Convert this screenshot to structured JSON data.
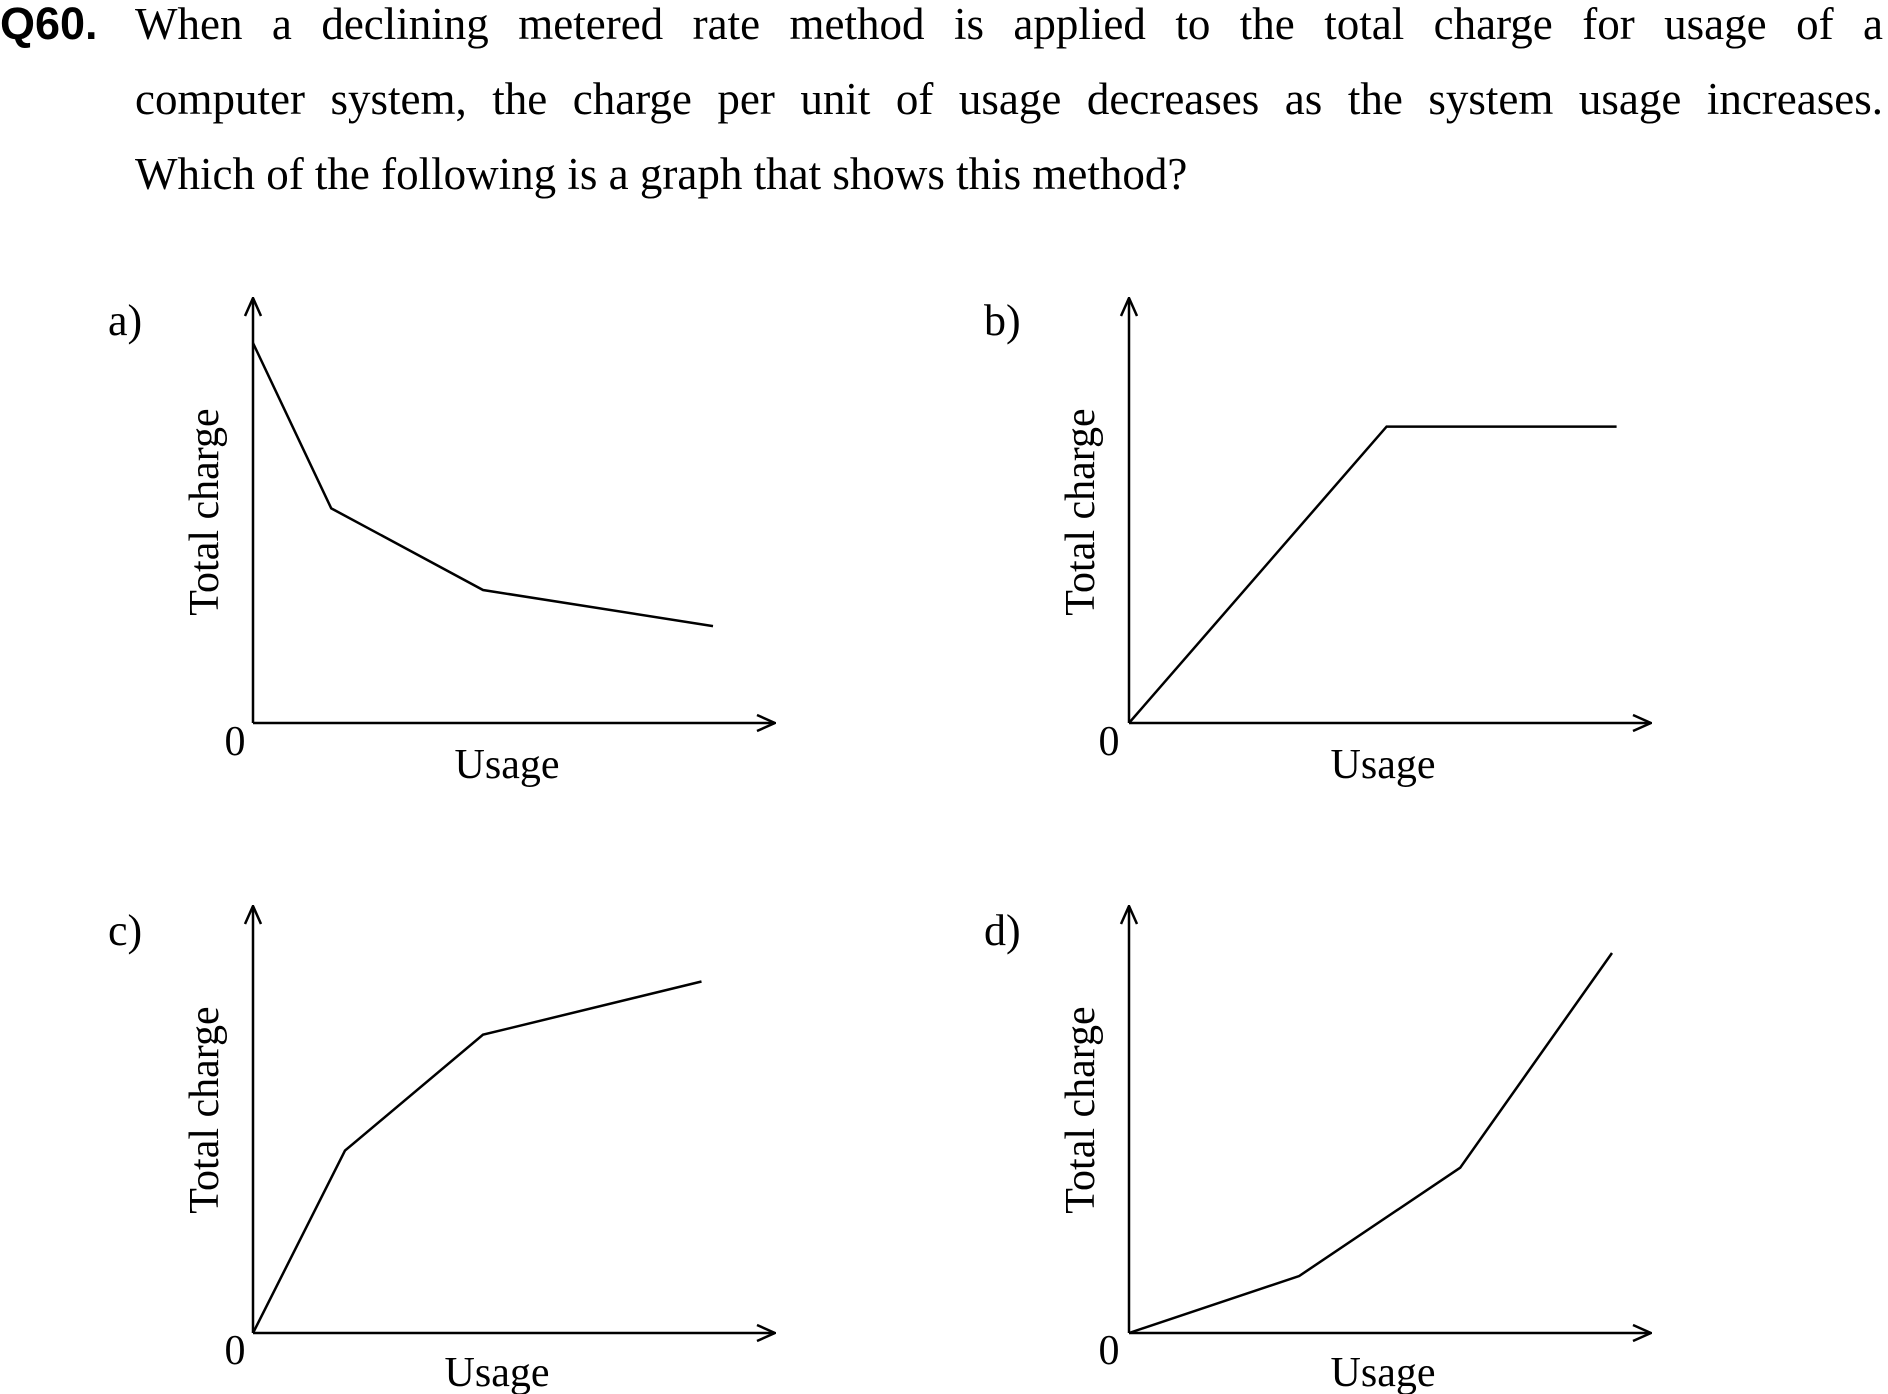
{
  "question": {
    "number": "Q60.",
    "lines": [
      "When a declining metered rate method is applied to the total charge for usage of a",
      "computer system, the charge per unit of usage decreases as the system usage increases.",
      "Which of the following is a graph that shows this method?"
    ]
  },
  "options": [
    {
      "label": "a)",
      "ylabel": "Total charge",
      "xlabel": "Usage",
      "origin": "0",
      "points": [
        [
          0,
          1.0
        ],
        [
          0.17,
          0.565
        ],
        [
          0.5,
          0.35
        ],
        [
          1.0,
          0.255
        ]
      ]
    },
    {
      "label": "b)",
      "ylabel": "Total charge",
      "xlabel": "Usage",
      "origin": "0",
      "points": [
        [
          0,
          0
        ],
        [
          0.56,
          0.78
        ],
        [
          1.06,
          0.78
        ]
      ]
    },
    {
      "label": "c)",
      "ylabel": "Total charge",
      "xlabel": "Usage",
      "origin": "0",
      "points": [
        [
          0,
          0
        ],
        [
          0.2,
          0.48
        ],
        [
          0.5,
          0.785
        ],
        [
          0.975,
          0.925
        ]
      ]
    },
    {
      "label": "d)",
      "ylabel": "Total charge",
      "xlabel": "Usage",
      "origin": "0",
      "points": [
        [
          0,
          0
        ],
        [
          0.37,
          0.15
        ],
        [
          0.72,
          0.435
        ],
        [
          1.05,
          1.0
        ]
      ]
    }
  ]
}
